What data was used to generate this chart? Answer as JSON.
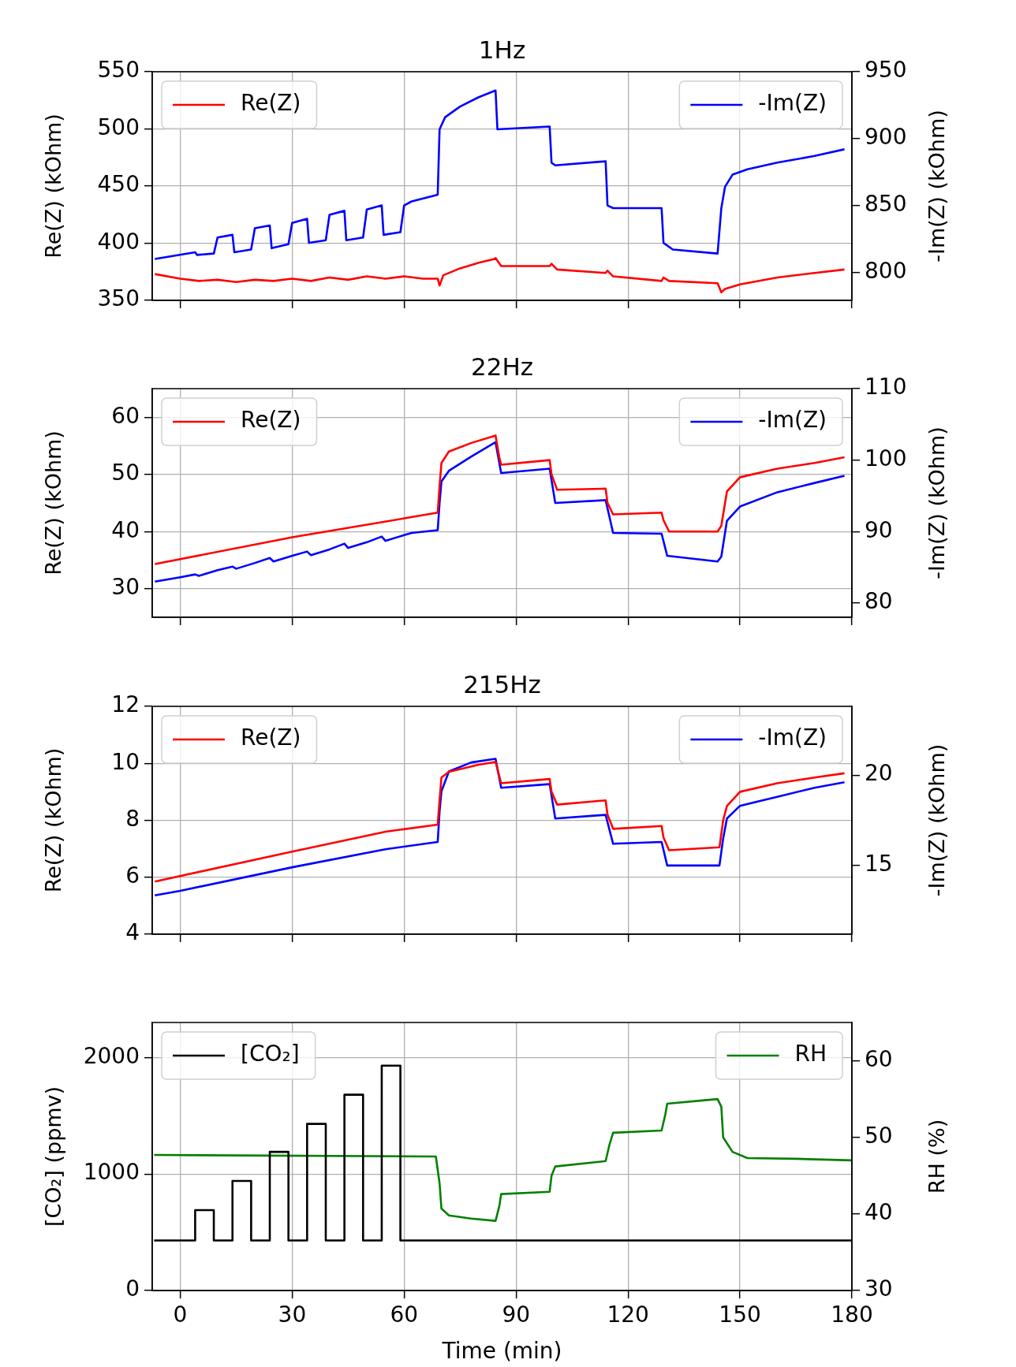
{
  "chart_data": [
    {
      "type": "line",
      "title": "1Hz",
      "ylabel": "Re(Z) (kOhm)",
      "y2label": "-Im(Z) (kOhm)",
      "xlim": [
        -7.5,
        180
      ],
      "xticks": [
        0,
        30,
        60,
        90,
        120,
        150,
        180
      ],
      "ylim": [
        350,
        550
      ],
      "yticks": [
        350,
        400,
        450,
        500,
        550
      ],
      "y2lim": [
        779,
        950
      ],
      "y2ticks": [
        800,
        850,
        900,
        950
      ],
      "tick_labels": "y",
      "grid": true,
      "legend": "top",
      "series": [
        {
          "name": "Re(Z)",
          "color": "#ff0000",
          "x": [
            -6.8,
            0,
            5,
            10,
            15,
            20,
            25,
            30,
            35,
            40,
            45,
            50,
            55,
            60,
            65,
            69,
            69.5,
            70.5,
            75,
            80,
            84,
            84.5,
            86,
            99,
            99.5,
            101,
            114,
            114.5,
            116,
            129,
            129.5,
            131,
            144,
            145,
            146,
            150,
            160,
            170,
            178
          ],
          "values": [
            373,
            369,
            367,
            368,
            366,
            368,
            367,
            369,
            367,
            370,
            368,
            371,
            369,
            371,
            369,
            369,
            363,
            372,
            378,
            383,
            386,
            387,
            380,
            380,
            382,
            377,
            374,
            376,
            371,
            367,
            370,
            367,
            365,
            357,
            360,
            364,
            370,
            374,
            377
          ]
        },
        {
          "name": "-Im(Z)",
          "color": "#0000ff",
          "axis": "y2",
          "x": [
            -6.8,
            4,
            4.5,
            9,
            10,
            14,
            14.5,
            19,
            20,
            24,
            24.5,
            29,
            30,
            34,
            34.5,
            39,
            40,
            44,
            44.5,
            49,
            50,
            54,
            54.5,
            59,
            60,
            62,
            69,
            69.5,
            71,
            75,
            80,
            84.5,
            85,
            99,
            99.5,
            100.5,
            114,
            114.5,
            116,
            129,
            129.5,
            132,
            144,
            145,
            146,
            148,
            152,
            160,
            170,
            178
          ],
          "values": [
            810,
            815,
            813,
            814,
            826,
            828,
            815,
            817,
            833,
            835,
            818,
            821,
            837,
            840,
            822,
            824,
            843,
            846,
            824,
            826,
            847,
            850,
            828,
            830,
            850,
            853,
            858,
            907,
            916,
            924,
            931,
            936,
            907,
            909,
            882,
            880,
            883,
            850,
            848,
            848,
            822,
            817,
            814,
            848,
            864,
            873,
            877,
            882,
            887,
            892
          ]
        }
      ]
    },
    {
      "type": "line",
      "title": "22Hz",
      "ylabel": "Re(Z) (kOhm)",
      "y2label": "-Im(Z) (kOhm)",
      "xlim": [
        -7.5,
        180
      ],
      "xticks": [
        0,
        30,
        60,
        90,
        120,
        150,
        180
      ],
      "ylim": [
        25,
        65
      ],
      "yticks": [
        30,
        40,
        50,
        60
      ],
      "y2lim": [
        78,
        110
      ],
      "y2ticks": [
        80,
        90,
        100,
        110
      ],
      "tick_labels": "y",
      "grid": true,
      "legend": "top",
      "series": [
        {
          "name": "Re(Z)",
          "color": "#ff0000",
          "x": [
            -6.8,
            30,
            60,
            69,
            69.5,
            70,
            72,
            78,
            84.5,
            85.5,
            86,
            99,
            99.5,
            101,
            114,
            114.5,
            116,
            129,
            129.5,
            131,
            144,
            145,
            146.5,
            150,
            160,
            170,
            178
          ],
          "values": [
            34.3,
            39,
            42.3,
            43.3,
            48,
            52,
            54,
            55.5,
            56.8,
            53,
            51.7,
            52.5,
            50,
            47.3,
            47.5,
            45,
            43,
            43.3,
            42,
            40,
            40,
            41,
            47,
            49.5,
            51,
            52,
            53
          ]
        },
        {
          "name": "-Im(Z)",
          "color": "#0000ff",
          "axis": "y2",
          "x": [
            -6.8,
            0,
            4,
            5,
            10,
            14,
            15,
            20,
            24,
            25,
            30,
            34,
            35,
            40,
            44,
            45,
            50,
            54,
            55,
            60,
            62,
            69,
            69.5,
            70,
            72,
            78,
            84.5,
            86,
            99,
            100.5,
            114,
            116,
            129,
            130.5,
            144,
            145,
            146.5,
            150,
            160,
            170,
            178
          ],
          "values": [
            83,
            83.6,
            84,
            83.8,
            84.6,
            85.1,
            84.8,
            85.6,
            86.3,
            85.8,
            86.6,
            87.2,
            86.7,
            87.5,
            88.3,
            87.7,
            88.5,
            89.3,
            88.7,
            89.5,
            89.8,
            90.2,
            94,
            97,
            98.5,
            100.5,
            102.5,
            98.2,
            98.8,
            94,
            94.4,
            89.8,
            89.7,
            86.6,
            85.8,
            86.5,
            91.5,
            93.5,
            95.5,
            96.8,
            97.8
          ]
        }
      ]
    },
    {
      "type": "line",
      "title": "215Hz",
      "ylabel": "Re(Z) (kOhm)",
      "y2label": "-Im(Z) (kOhm)",
      "xlim": [
        -7.5,
        180
      ],
      "xticks": [
        0,
        30,
        60,
        90,
        120,
        150,
        180
      ],
      "ylim": [
        4,
        12
      ],
      "yticks": [
        4,
        6,
        8,
        10,
        12
      ],
      "y2lim": [
        11.2,
        23.8
      ],
      "y2ticks": [
        15,
        20
      ],
      "tick_labels": "y",
      "grid": true,
      "legend": "top",
      "series": [
        {
          "name": "Re(Z)",
          "color": "#ff0000",
          "x": [
            -6.8,
            30,
            55,
            69,
            69.5,
            70,
            72,
            80,
            84.5,
            86,
            99,
            99.5,
            101,
            114,
            114.5,
            116,
            129,
            129.5,
            131,
            144.5,
            145.5,
            146.5,
            150,
            160,
            170,
            178
          ],
          "values": [
            5.85,
            6.9,
            7.6,
            7.85,
            8.7,
            9.5,
            9.7,
            9.95,
            10.05,
            9.3,
            9.45,
            9.0,
            8.55,
            8.7,
            8.2,
            7.7,
            7.8,
            7.4,
            6.95,
            7.05,
            8.0,
            8.5,
            9.0,
            9.3,
            9.5,
            9.65
          ]
        },
        {
          "name": "-Im(Z)",
          "color": "#0000ff",
          "axis": "y2",
          "x": [
            -6.8,
            0,
            30,
            55,
            69,
            69.5,
            70,
            72,
            78,
            84.5,
            86,
            99,
            100.5,
            114,
            116,
            129,
            130.5,
            144.5,
            145.5,
            146.5,
            150,
            160,
            170,
            178
          ],
          "values": [
            13.35,
            13.6,
            14.9,
            15.9,
            16.3,
            18,
            19.1,
            20.2,
            20.7,
            20.9,
            19.3,
            19.5,
            17.6,
            17.8,
            16.2,
            16.3,
            15,
            15,
            16.5,
            17.6,
            18.3,
            18.8,
            19.3,
            19.6
          ]
        }
      ]
    },
    {
      "type": "line",
      "xlabel": "Time (min)",
      "ylabel": "[CO₂] (ppmv)",
      "y2label": "RH (%)",
      "xlim": [
        -7.5,
        180
      ],
      "xticks": [
        0,
        30,
        60,
        90,
        120,
        150,
        180
      ],
      "ylim": [
        0,
        2300
      ],
      "yticks": [
        0,
        1000,
        2000
      ],
      "y2lim": [
        30,
        65
      ],
      "y2ticks": [
        30,
        40,
        50,
        60
      ],
      "grid": true,
      "legend": "top",
      "series": [
        {
          "name": "[CO₂]",
          "type": "step",
          "color": "#000000",
          "x": [
            -7,
            4,
            9,
            14,
            19,
            24,
            29,
            34,
            39,
            44,
            49,
            54,
            59,
            180
          ],
          "values": [
            430,
            690,
            430,
            940,
            430,
            1190,
            430,
            1430,
            430,
            1680,
            430,
            1930,
            430,
            430
          ]
        },
        {
          "name": "RH",
          "color": "#008000",
          "axis": "y2",
          "x": [
            -7,
            68.5,
            69.5,
            70,
            72,
            78,
            84.5,
            85.5,
            86,
            99,
            99.5,
            100.5,
            114,
            115,
            116,
            129,
            130,
            130.5,
            144,
            145,
            145.5,
            148,
            152,
            165,
            180
          ],
          "values": [
            47.7,
            47.5,
            44,
            40.7,
            39.8,
            39.4,
            39.1,
            41,
            42.6,
            42.9,
            45,
            46.2,
            46.9,
            49,
            50.6,
            50.9,
            53,
            54.4,
            55,
            54,
            50,
            48.1,
            47.3,
            47.2,
            47
          ]
        }
      ]
    }
  ]
}
